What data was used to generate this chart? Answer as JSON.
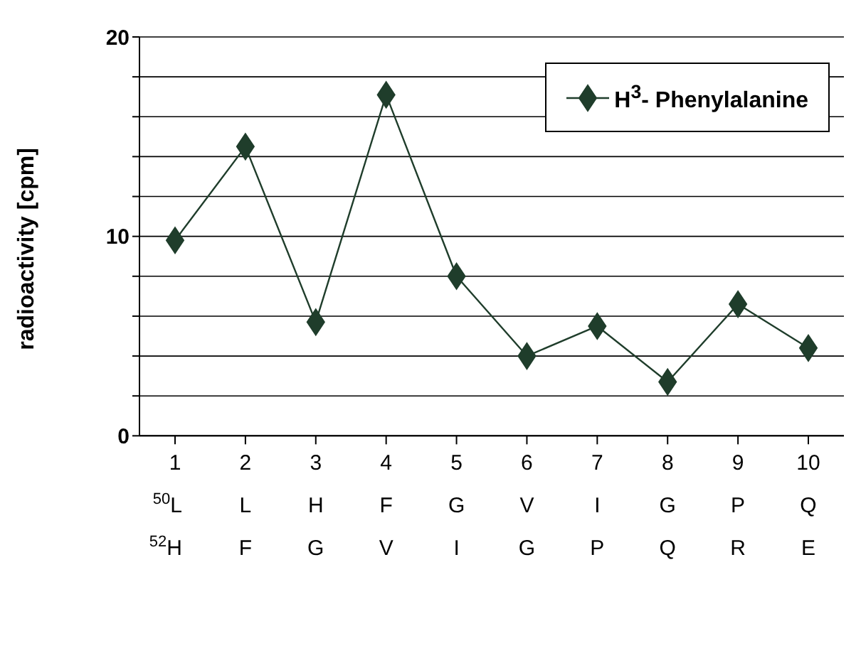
{
  "chart_data": {
    "type": "line",
    "ylabel": "radioactivity [cpm]",
    "categories": [
      "1\n$^{50}$L\n$^{52}$H",
      "2\nL\nF",
      "3\nH\nG",
      "4\nF\nV",
      "5\nG\nI",
      "6\nV\nG",
      "7\nI\nP",
      "8\nG\nQ",
      "9\nP\nR",
      "10\nQ\nE"
    ],
    "series": [
      {
        "name": "H$^{3}$- Phenylalanine",
        "color": "#1f3d2b",
        "values": [
          9.8,
          14.5,
          5.7,
          17.1,
          8.0,
          4.0,
          5.5,
          2.7,
          6.6,
          4.4
        ]
      }
    ],
    "ylim": [
      0,
      20
    ],
    "yticks": [
      0,
      {
        "value": 2,
        "label": null
      },
      {
        "value": 4,
        "label": null
      },
      {
        "value": 6,
        "label": null
      },
      {
        "value": 8,
        "label": null
      },
      10,
      {
        "value": 12,
        "label": null
      },
      {
        "value": 14,
        "label": null
      },
      {
        "value": 16,
        "label": null
      },
      {
        "value": 18,
        "label": null
      },
      20
    ],
    "grid": "y",
    "legend": "top right",
    "marker": "diamond",
    "line_style": "solid"
  }
}
